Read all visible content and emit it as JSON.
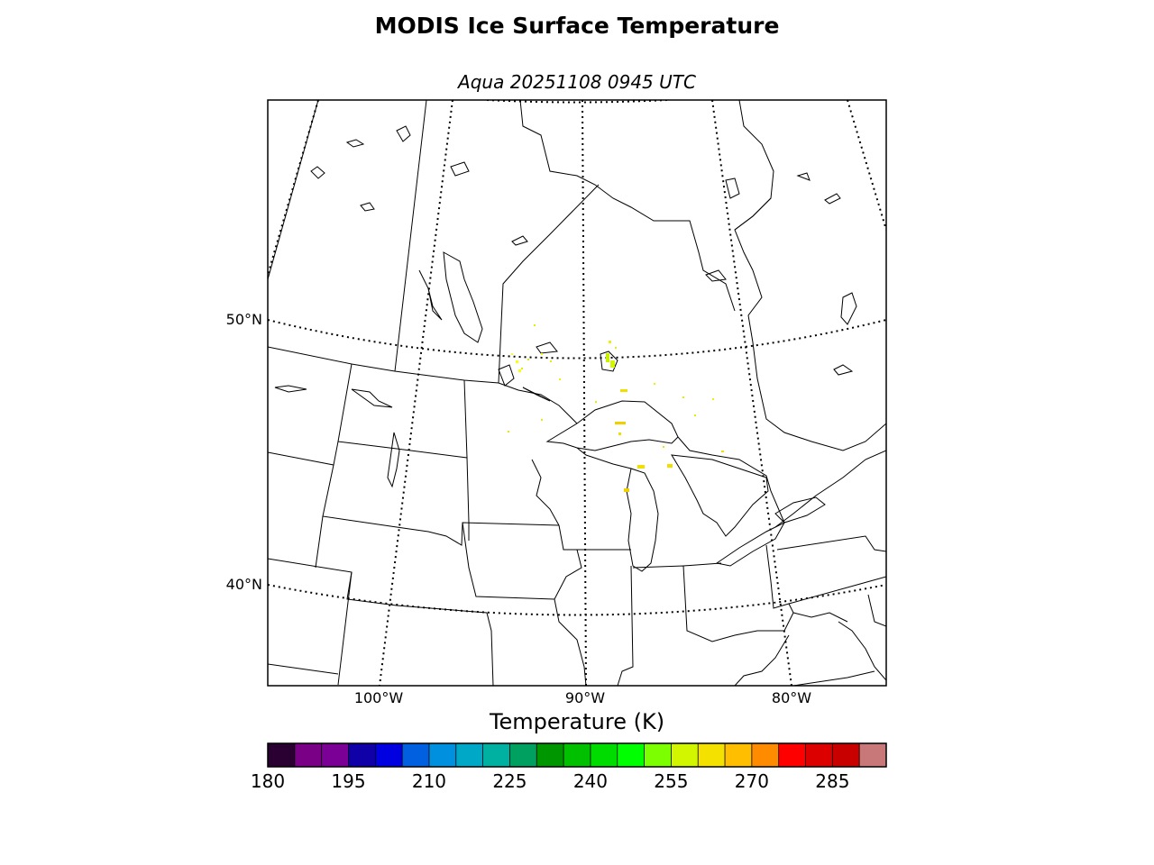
{
  "title": "MODIS Ice Surface Temperature",
  "subtitle": "Aqua 20251108 0945 UTC",
  "map": {
    "latitude_labels": [
      "50°N",
      "40°N"
    ],
    "longitude_labels": [
      "100°W",
      "90°W",
      "80°W"
    ],
    "gridlines": "dotted",
    "ice_temperature_pixels": [
      {
        "region": "Lake of the Woods area",
        "color": "#ffff00"
      },
      {
        "region": "Lake Nipigon",
        "color": "#c8f000"
      },
      {
        "region": "Lake Superior north shore",
        "color": "#f0e000"
      },
      {
        "region": "Keweenaw area",
        "color": "#f0d000"
      },
      {
        "region": "Straits of Mackinac",
        "color": "#f0e000"
      }
    ]
  },
  "colorbar": {
    "label": "Temperature (K)",
    "ticks": [
      "180",
      "195",
      "210",
      "225",
      "240",
      "255",
      "270",
      "285"
    ],
    "range": [
      180,
      295
    ],
    "colors": [
      "#2a0033",
      "#7a0085",
      "#7a0096",
      "#1000a8",
      "#0000e0",
      "#0060e0",
      "#0090e0",
      "#00a8c8",
      "#00b0a0",
      "#00a060",
      "#009600",
      "#00c000",
      "#00dc00",
      "#00ff00",
      "#7cff00",
      "#d2f500",
      "#f5e100",
      "#ffbe00",
      "#ff8c00",
      "#ff0000",
      "#dc0000",
      "#c80000",
      "#c87878"
    ]
  },
  "chart_data": {
    "type": "heatmap",
    "title": "MODIS Ice Surface Temperature",
    "subtitle": "Aqua 20251108 0945 UTC",
    "colorbar_label": "Temperature (K)",
    "colorbar_range": [
      180,
      295
    ],
    "colorbar_ticks": [
      180,
      195,
      210,
      225,
      240,
      255,
      270,
      285
    ],
    "grid": true
  }
}
